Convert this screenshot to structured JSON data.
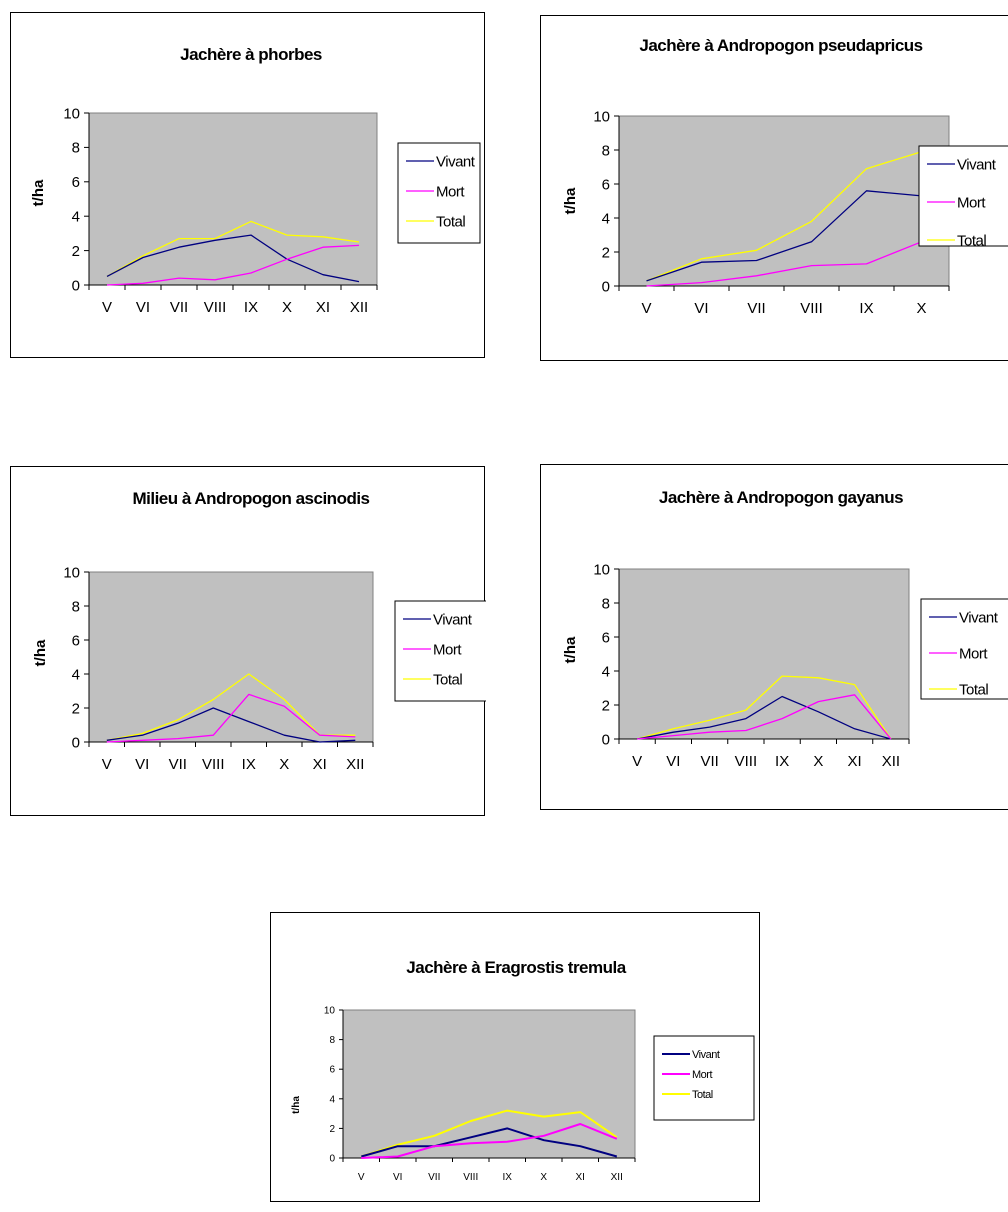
{
  "chart_data": [
    {
      "type": "line",
      "title": "Jachère à phorbes",
      "ylabel": "t/ha",
      "categories": [
        "V",
        "VI",
        "VII",
        "VIII",
        "IX",
        "X",
        "XI",
        "XII"
      ],
      "ylim": [
        0,
        10
      ],
      "yticks": [
        "0",
        "2",
        "4",
        "6",
        "8",
        "10"
      ],
      "series": [
        {
          "name": "Vivant",
          "color": "#000080",
          "values": [
            0.5,
            1.6,
            2.2,
            2.6,
            2.9,
            1.5,
            0.6,
            0.2
          ]
        },
        {
          "name": "Mort",
          "color": "#ff00ff",
          "values": [
            0.0,
            0.1,
            0.4,
            0.3,
            0.7,
            1.5,
            2.2,
            2.3
          ]
        },
        {
          "name": "Total",
          "color": "#ffff00",
          "values": [
            0.5,
            1.7,
            2.7,
            2.7,
            3.7,
            2.9,
            2.8,
            2.5
          ]
        }
      ],
      "grid": false,
      "legend": "right",
      "background": "#c0c0c0"
    },
    {
      "type": "line",
      "title": "Jachère à Andropogon pseudapricus",
      "ylabel": "t/ha",
      "categories": [
        "V",
        "VI",
        "VII",
        "VIII",
        "IX",
        "X"
      ],
      "ylim": [
        0,
        10
      ],
      "yticks": [
        "0",
        "2",
        "4",
        "6",
        "8",
        "10"
      ],
      "series": [
        {
          "name": "Vivant",
          "color": "#000080",
          "values": [
            0.3,
            1.4,
            1.5,
            2.6,
            5.6,
            5.3
          ]
        },
        {
          "name": "Mort",
          "color": "#ff00ff",
          "values": [
            0.0,
            0.2,
            0.6,
            1.2,
            1.3,
            2.6
          ]
        },
        {
          "name": "Total",
          "color": "#ffff00",
          "values": [
            0.3,
            1.6,
            2.1,
            3.8,
            6.9,
            7.9
          ]
        }
      ],
      "grid": false,
      "legend": "right",
      "background": "#c0c0c0"
    },
    {
      "type": "line",
      "title": "Milieu à Andropogon ascinodis",
      "ylabel": "t/ha",
      "categories": [
        "V",
        "VI",
        "VII",
        "VIII",
        "IX",
        "X",
        "XI",
        "XII"
      ],
      "ylim": [
        0,
        10
      ],
      "yticks": [
        "0",
        "2",
        "4",
        "6",
        "8",
        "10"
      ],
      "series": [
        {
          "name": "Vivant",
          "color": "#000080",
          "values": [
            0.1,
            0.4,
            1.1,
            2.0,
            1.2,
            0.4,
            0.0,
            0.1
          ]
        },
        {
          "name": "Mort",
          "color": "#ff00ff",
          "values": [
            0.0,
            0.1,
            0.2,
            0.4,
            2.8,
            2.1,
            0.4,
            0.3
          ]
        },
        {
          "name": "Total",
          "color": "#ffff00",
          "values": [
            0.1,
            0.5,
            1.3,
            2.5,
            4.0,
            2.5,
            0.4,
            0.4
          ]
        }
      ],
      "grid": false,
      "legend": "right",
      "background": "#c0c0c0"
    },
    {
      "type": "line",
      "title": "Jachère à Andropogon gayanus",
      "ylabel": "t/ha",
      "categories": [
        "V",
        "VI",
        "VII",
        "VIII",
        "IX",
        "X",
        "XI",
        "XII"
      ],
      "ylim": [
        0,
        10
      ],
      "yticks": [
        "0",
        "2",
        "4",
        "6",
        "8",
        "10"
      ],
      "series": [
        {
          "name": "Vivant",
          "color": "#000080",
          "values": [
            0.0,
            0.4,
            0.7,
            1.2,
            2.5,
            1.6,
            0.6,
            0.0
          ]
        },
        {
          "name": "Mort",
          "color": "#ff00ff",
          "values": [
            0.0,
            0.2,
            0.4,
            0.5,
            1.2,
            2.2,
            2.6,
            0.0
          ]
        },
        {
          "name": "Total",
          "color": "#ffff00",
          "values": [
            0.0,
            0.6,
            1.1,
            1.7,
            3.7,
            3.6,
            3.2,
            0.0
          ]
        }
      ],
      "grid": false,
      "legend": "right",
      "background": "#c0c0c0"
    },
    {
      "type": "line",
      "title": "Jachère à Eragrostis tremula",
      "ylabel": "t/ha",
      "categories": [
        "V",
        "VI",
        "VII",
        "VIII",
        "IX",
        "X",
        "XI",
        "XII"
      ],
      "ylim": [
        0,
        10
      ],
      "yticks": [
        "0",
        "2",
        "4",
        "6",
        "8",
        "10"
      ],
      "series": [
        {
          "name": "Vivant",
          "color": "#000080",
          "values": [
            0.1,
            0.8,
            0.8,
            1.4,
            2.0,
            1.2,
            0.8,
            0.1
          ]
        },
        {
          "name": "Mort",
          "color": "#ff00ff",
          "values": [
            0.0,
            0.1,
            0.8,
            1.0,
            1.1,
            1.5,
            2.3,
            1.3
          ]
        },
        {
          "name": "Total",
          "color": "#ffff00",
          "values": [
            0.1,
            0.9,
            1.5,
            2.5,
            3.2,
            2.8,
            3.1,
            1.4
          ]
        }
      ],
      "grid": false,
      "legend": "right",
      "background": "#c0c0c0"
    }
  ]
}
